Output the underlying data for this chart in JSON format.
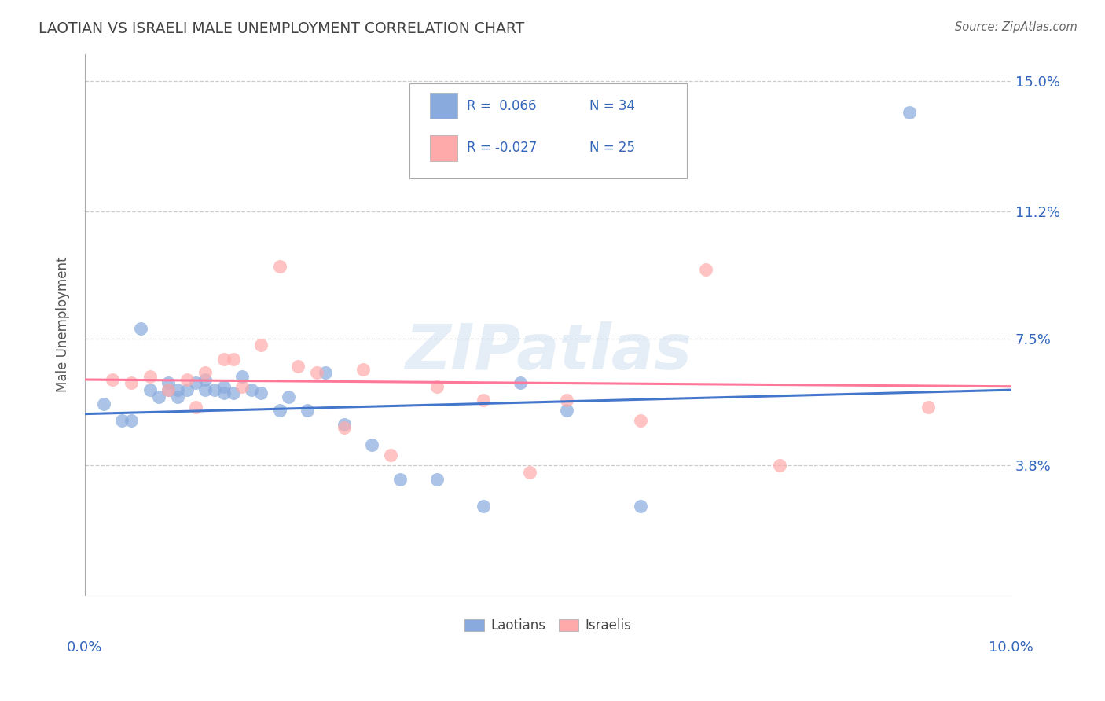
{
  "title": "LAOTIAN VS ISRAELI MALE UNEMPLOYMENT CORRELATION CHART",
  "source": "Source: ZipAtlas.com",
  "ylabel": "Male Unemployment",
  "xlim": [
    0.0,
    0.1
  ],
  "ylim": [
    0.0,
    0.158
  ],
  "ytick_vals": [
    0.038,
    0.075,
    0.112,
    0.15
  ],
  "ytick_labels": [
    "3.8%",
    "7.5%",
    "11.2%",
    "15.0%"
  ],
  "legend_entry1": "Laotians",
  "legend_entry2": "Israelis",
  "blue_color": "#88AADD",
  "pink_color": "#FFAAAA",
  "blue_line_color": "#4477CC",
  "pink_line_color": "#FF7799",
  "title_color": "#444444",
  "source_color": "#666666",
  "watermark": "ZIPatlas",
  "laotian_x": [
    0.002,
    0.004,
    0.005,
    0.006,
    0.007,
    0.008,
    0.009,
    0.009,
    0.01,
    0.01,
    0.011,
    0.012,
    0.013,
    0.013,
    0.014,
    0.015,
    0.015,
    0.016,
    0.017,
    0.018,
    0.019,
    0.021,
    0.022,
    0.024,
    0.026,
    0.028,
    0.031,
    0.034,
    0.038,
    0.043,
    0.047,
    0.052,
    0.06,
    0.089
  ],
  "laotian_y": [
    0.056,
    0.051,
    0.051,
    0.078,
    0.06,
    0.058,
    0.06,
    0.062,
    0.06,
    0.058,
    0.06,
    0.062,
    0.063,
    0.06,
    0.06,
    0.061,
    0.059,
    0.059,
    0.064,
    0.06,
    0.059,
    0.054,
    0.058,
    0.054,
    0.065,
    0.05,
    0.044,
    0.034,
    0.034,
    0.026,
    0.062,
    0.054,
    0.026,
    0.141
  ],
  "israeli_x": [
    0.003,
    0.005,
    0.007,
    0.009,
    0.011,
    0.012,
    0.013,
    0.015,
    0.016,
    0.017,
    0.019,
    0.021,
    0.023,
    0.025,
    0.028,
    0.03,
    0.033,
    0.038,
    0.043,
    0.048,
    0.052,
    0.06,
    0.067,
    0.075,
    0.091
  ],
  "israeli_y": [
    0.063,
    0.062,
    0.064,
    0.06,
    0.063,
    0.055,
    0.065,
    0.069,
    0.069,
    0.061,
    0.073,
    0.096,
    0.067,
    0.065,
    0.049,
    0.066,
    0.041,
    0.061,
    0.057,
    0.036,
    0.057,
    0.051,
    0.095,
    0.038,
    0.055
  ]
}
